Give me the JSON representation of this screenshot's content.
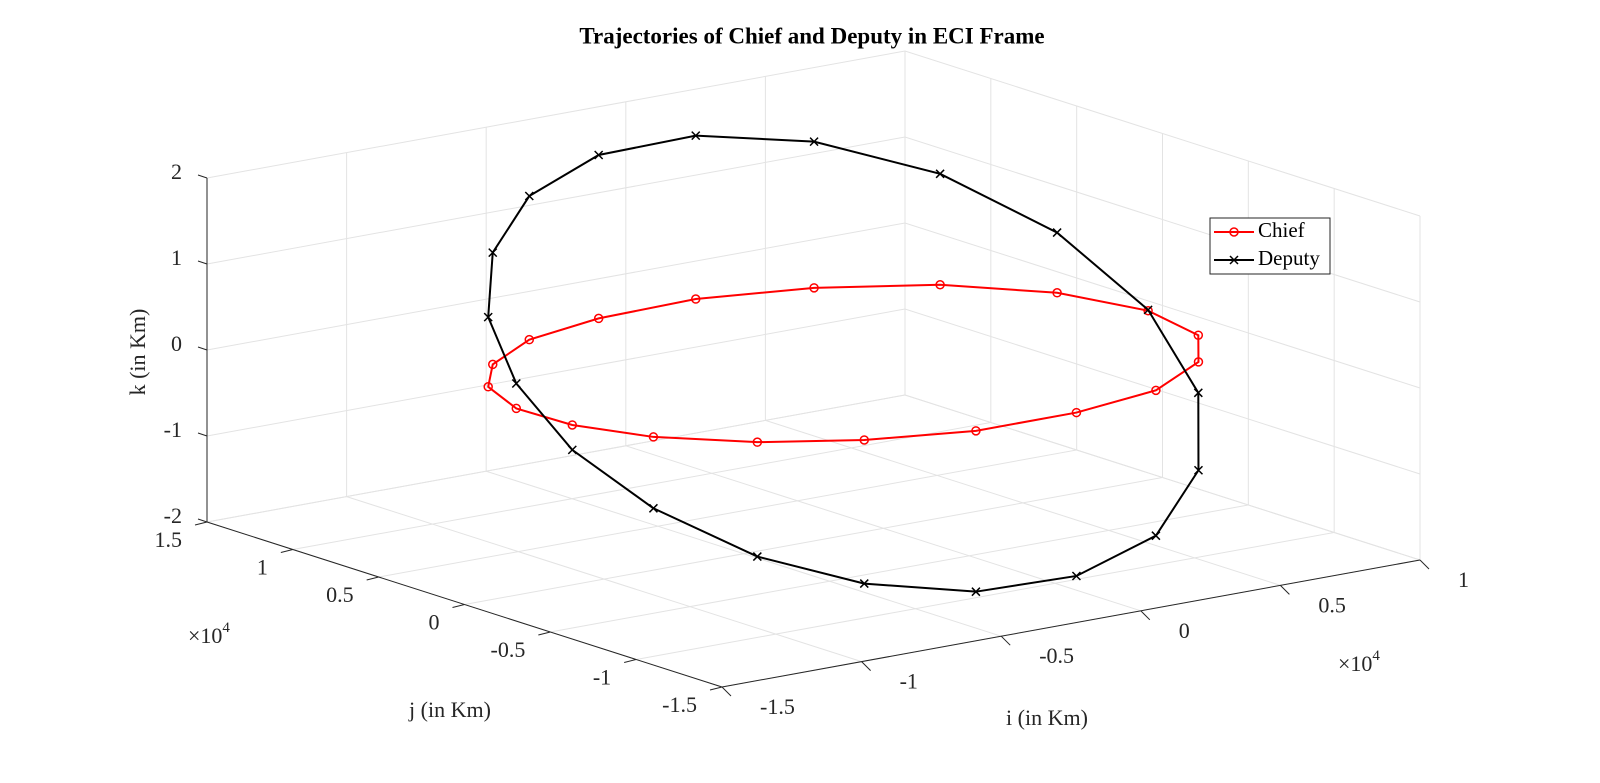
{
  "chart_data": {
    "type": "line3d",
    "title": "Trajectories of Chief and Deputy in ECI Frame",
    "xlabel": "i (in Km)",
    "ylabel": "j (in Km)",
    "zlabel": "k (in Km)",
    "x_multiplier": {
      "base": "×10",
      "exponent": "4"
    },
    "y_multiplier": {
      "base": "×10",
      "exponent": "4"
    },
    "xlim": [
      -1.5,
      1
    ],
    "ylim": [
      -1.5,
      1.5
    ],
    "zlim": [
      -2,
      2
    ],
    "xticks": [
      -1.5,
      -1,
      -0.5,
      0,
      0.5,
      1
    ],
    "yticks": [
      -1.5,
      -1,
      -0.5,
      0,
      0.5,
      1,
      1.5
    ],
    "zticks": [
      -2,
      -1,
      0,
      1,
      2
    ],
    "grid": true,
    "legend_position": "upper-right",
    "series": [
      {
        "name": "Chief",
        "color": "#ff0000",
        "marker": "o",
        "x": [
          0.64,
          0.85,
          0.93,
          0.87,
          0.68,
          0.38,
          0.04,
          -0.32,
          -0.64,
          -0.9,
          -1.1,
          -1.2,
          -1.21,
          -1.12,
          -0.95,
          -0.69,
          -0.38,
          -0.02,
          0.33
        ],
        "y": [
          0.71,
          0.37,
          -0.03,
          -0.42,
          -0.73,
          -0.97,
          -1.06,
          -1.06,
          -0.93,
          -0.73,
          -0.45,
          -0.14,
          0.17,
          0.48,
          0.73,
          0.94,
          1.04,
          1.06,
          0.94
        ],
        "z": [
          0,
          0,
          0,
          0,
          0,
          0,
          0,
          0,
          0,
          0,
          0,
          0,
          0,
          0,
          0,
          0,
          0,
          0,
          0
        ]
      },
      {
        "name": "Deputy",
        "color": "#000000",
        "marker": "x",
        "x": [
          -0.02,
          0.33,
          0.64,
          0.85,
          0.93,
          0.87,
          0.68,
          0.38,
          0.04,
          -0.32,
          -0.64,
          -0.9,
          -1.1,
          -1.2,
          -1.21,
          -1.12,
          -0.95,
          -0.69,
          -0.38
        ],
        "y": [
          1.06,
          0.94,
          0.71,
          0.37,
          -0.03,
          -0.42,
          -0.73,
          -0.97,
          -1.06,
          -1.06,
          -0.93,
          -0.73,
          -0.45,
          -0.14,
          0.17,
          0.48,
          0.73,
          0.94,
          1.04
        ],
        "z": [
          1.9,
          1.7,
          1.29,
          0.7,
          0.01,
          -0.67,
          -1.26,
          -1.69,
          -1.9,
          -1.87,
          -1.67,
          -1.33,
          -0.83,
          -0.29,
          0.29,
          0.81,
          1.3,
          1.67,
          1.9
        ]
      }
    ]
  }
}
